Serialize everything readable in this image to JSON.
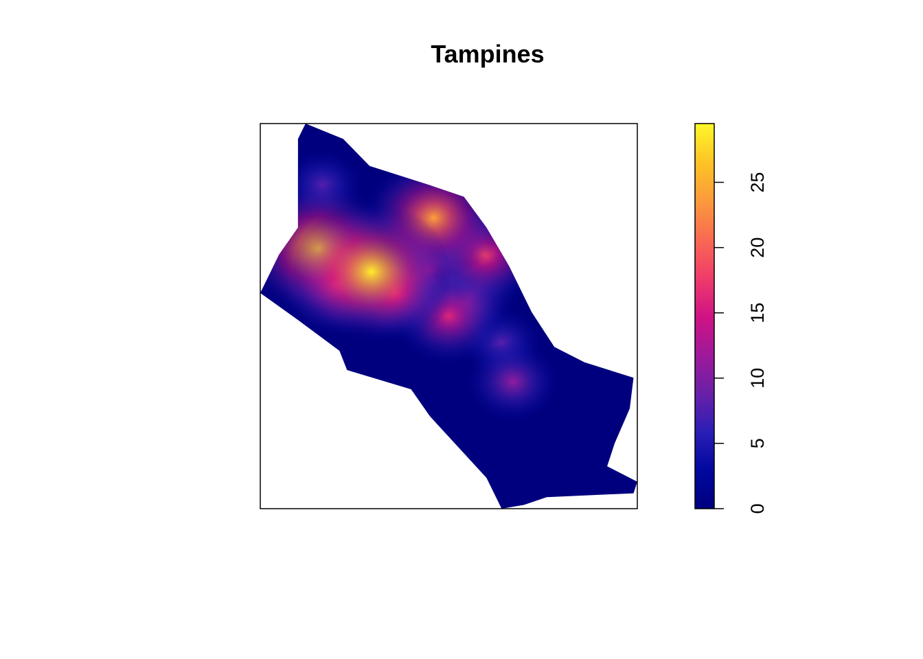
{
  "chart_data": {
    "type": "heatmap",
    "title": "Tampines",
    "xlabel": "",
    "ylabel": "",
    "legend_position": "right",
    "colorbar": {
      "min": 0,
      "max": 29.5,
      "ticks": [
        0,
        5,
        10,
        15,
        20,
        25
      ],
      "tick_labels": [
        "0",
        "5",
        "10",
        "15",
        "20",
        "25"
      ]
    },
    "palette": [
      "#00007f",
      "#00089e",
      "#2b1eb5",
      "#6a20a8",
      "#a0199a",
      "#d01384",
      "#f03c6a",
      "#f86a52",
      "#fc9a3c",
      "#fdc425",
      "#fff72b"
    ],
    "hotspots": [
      {
        "x": 0.155,
        "y": 0.325,
        "value": 27
      },
      {
        "x": 0.295,
        "y": 0.385,
        "value": 29
      },
      {
        "x": 0.46,
        "y": 0.245,
        "value": 24
      },
      {
        "x": 0.595,
        "y": 0.34,
        "value": 18
      },
      {
        "x": 0.5,
        "y": 0.5,
        "value": 16
      },
      {
        "x": 0.2,
        "y": 0.42,
        "value": 17
      },
      {
        "x": 0.36,
        "y": 0.44,
        "value": 16
      },
      {
        "x": 0.45,
        "y": 0.38,
        "value": 14
      },
      {
        "x": 0.55,
        "y": 0.45,
        "value": 12
      },
      {
        "x": 0.165,
        "y": 0.16,
        "value": 8
      },
      {
        "x": 0.67,
        "y": 0.67,
        "value": 11
      },
      {
        "x": 0.64,
        "y": 0.57,
        "value": 8
      }
    ]
  }
}
